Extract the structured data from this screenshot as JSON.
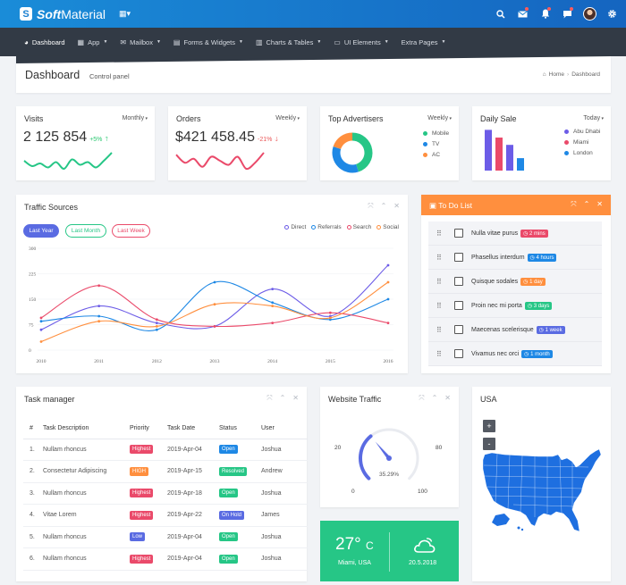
{
  "brand": {
    "logo_letter": "S",
    "bold": "Soft",
    "rest": "Material"
  },
  "topbar": {
    "icons": [
      "grid-icon",
      "search-icon",
      "mail-icon",
      "bell-icon",
      "chat-icon",
      "avatar",
      "gear-icon"
    ]
  },
  "nav": [
    {
      "label": "Dashboard",
      "icon": "dashboard-icon",
      "caret": false
    },
    {
      "label": "App",
      "icon": "grid-icon",
      "caret": true
    },
    {
      "label": "Mailbox",
      "icon": "mail-icon",
      "caret": true
    },
    {
      "label": "Forms & Widgets",
      "icon": "form-icon",
      "caret": true
    },
    {
      "label": "Charts & Tables",
      "icon": "chart-icon",
      "caret": true
    },
    {
      "label": "UI Elements",
      "icon": "monitor-icon",
      "caret": true
    },
    {
      "label": "Extra Pages",
      "icon": "",
      "caret": true
    }
  ],
  "header": {
    "title": "Dashboard",
    "subtitle": "Control panel",
    "crumb_home": "Home",
    "crumb_sep": "›",
    "crumb_current": "Dashboard"
  },
  "visits": {
    "title": "Visits",
    "period": "Monthly",
    "value": "2 125 854",
    "delta": "+5%",
    "spark": [
      8,
      4,
      6,
      3,
      7,
      2,
      9,
      5,
      7,
      3,
      8,
      14
    ]
  },
  "orders": {
    "title": "Orders",
    "period": "Weekly",
    "value": "$421 458.45",
    "delta": "-21%",
    "spark": [
      9,
      5,
      7,
      3,
      8,
      6,
      4,
      8,
      2,
      5,
      10
    ]
  },
  "advertisers": {
    "title": "Top Advertisers",
    "period": "Weekly",
    "legend": [
      "Mobile",
      "TV",
      "AC"
    ],
    "colors": [
      "#26c686",
      "#1e88e5",
      "#ff8f3e"
    ],
    "values": [
      45,
      35,
      20
    ]
  },
  "daily_sale": {
    "title": "Daily Sale",
    "period": "Today",
    "legend": [
      "Abu Dhabi",
      "Miami",
      "London"
    ],
    "colors": [
      "#6c5ce7",
      "#ea4a6a",
      "#1e88e5"
    ],
    "bars": [
      {
        "color": "#6c5ce7",
        "value": 9.5
      },
      {
        "color": "#ea4a6a",
        "value": 7.7
      },
      {
        "color": "#6c5ce7",
        "value": 6.0
      },
      {
        "color": "#1e88e5",
        "value": 2.9
      }
    ]
  },
  "traffic": {
    "title": "Traffic Sources",
    "pills": [
      "Last Year",
      "Last Month",
      "Last Week"
    ],
    "tools": [
      "expand-icon",
      "chevron-up-icon",
      "close-icon"
    ],
    "chart_data": {
      "type": "line",
      "x": [
        "2010",
        "2011",
        "2012",
        "2013",
        "2014",
        "2015",
        "2016"
      ],
      "ylim": [
        0,
        300
      ],
      "yticks": [
        "0",
        "75",
        "150",
        "225",
        "300"
      ],
      "xlabel": "",
      "ylabel": "",
      "legend_position": "top-right",
      "series": [
        {
          "name": "Direct",
          "color": "#6c5ce7",
          "values": [
            60,
            130,
            80,
            70,
            180,
            100,
            250
          ]
        },
        {
          "name": "Referrals",
          "color": "#1e88e5",
          "values": [
            85,
            100,
            60,
            200,
            140,
            90,
            150
          ]
        },
        {
          "name": "Search",
          "color": "#ea4a6a",
          "values": [
            95,
            190,
            90,
            70,
            80,
            110,
            80
          ]
        },
        {
          "name": "Social",
          "color": "#ff8f3e",
          "values": [
            25,
            85,
            70,
            135,
            130,
            95,
            200
          ]
        }
      ]
    }
  },
  "todo": {
    "title": "To Do List",
    "tools": [
      "expand-icon",
      "chevron-up-icon",
      "close-icon"
    ],
    "items": [
      {
        "text": "Nulla vitae purus",
        "badge": "2 mins",
        "color": "#ea4a6a"
      },
      {
        "text": "Phasellus interdum",
        "badge": "4 hours",
        "color": "#1e88e5"
      },
      {
        "text": "Quisque sodales",
        "badge": "1 day",
        "color": "#ff8f3e"
      },
      {
        "text": "Proin nec mi porta",
        "badge": "3 days",
        "color": "#26c686"
      },
      {
        "text": "Maecenas scelerisque",
        "badge": "1 week",
        "color": "#5a6be2"
      },
      {
        "text": "Vivamus nec orci",
        "badge": "1 month",
        "color": "#1e88e5"
      }
    ]
  },
  "tasks": {
    "title": "Task manager",
    "tools": [
      "expand-icon",
      "chevron-up-icon",
      "close-icon"
    ],
    "headers": [
      "#",
      "Task Description",
      "Priority",
      "Task Date",
      "Status",
      "User"
    ],
    "rows": [
      {
        "n": "1.",
        "desc": "Nullam rhoncus",
        "priority": "Highest",
        "pcolor": "#ea4a6a",
        "date": "2019-Apr-04",
        "status": "Open",
        "scolor": "#1e88e5",
        "user": "Joshua"
      },
      {
        "n": "2.",
        "desc": "Consectetur Adipiscing",
        "priority": "HIGH",
        "pcolor": "#ff8f3e",
        "date": "2019-Apr-15",
        "status": "Resolved",
        "scolor": "#26c686",
        "user": "Andrew"
      },
      {
        "n": "3.",
        "desc": "Nullam rhoncus",
        "priority": "Highest",
        "pcolor": "#ea4a6a",
        "date": "2019-Apr-18",
        "status": "Open",
        "scolor": "#26c686",
        "user": "Joshua"
      },
      {
        "n": "4.",
        "desc": "Vitae Lorem",
        "priority": "Highest",
        "pcolor": "#ea4a6a",
        "date": "2019-Apr-22",
        "status": "On Hold",
        "scolor": "#5a6be2",
        "user": "James"
      },
      {
        "n": "5.",
        "desc": "Nullam rhoncus",
        "priority": "Low",
        "pcolor": "#5a6be2",
        "date": "2019-Apr-04",
        "status": "Open",
        "scolor": "#26c686",
        "user": "Joshua"
      },
      {
        "n": "6.",
        "desc": "Nullam rhoncus",
        "priority": "Highest",
        "pcolor": "#ea4a6a",
        "date": "2019-Apr-04",
        "status": "Open",
        "scolor": "#26c686",
        "user": "Joshua"
      }
    ]
  },
  "website_traffic": {
    "title": "Website Traffic",
    "tools": [
      "expand-icon",
      "chevron-up-icon",
      "close-icon"
    ],
    "gauge_min": "0",
    "gauge_20": "20",
    "gauge_80": "80",
    "gauge_max": "100",
    "gauge_value": 35.29,
    "gauge_label": "35.29%"
  },
  "weather": {
    "temp": "27°",
    "unit": "C",
    "city": "Miami, USA",
    "date": "20.5.2018"
  },
  "usa": {
    "title": "USA",
    "zoom_in": "+",
    "zoom_out": "-"
  }
}
